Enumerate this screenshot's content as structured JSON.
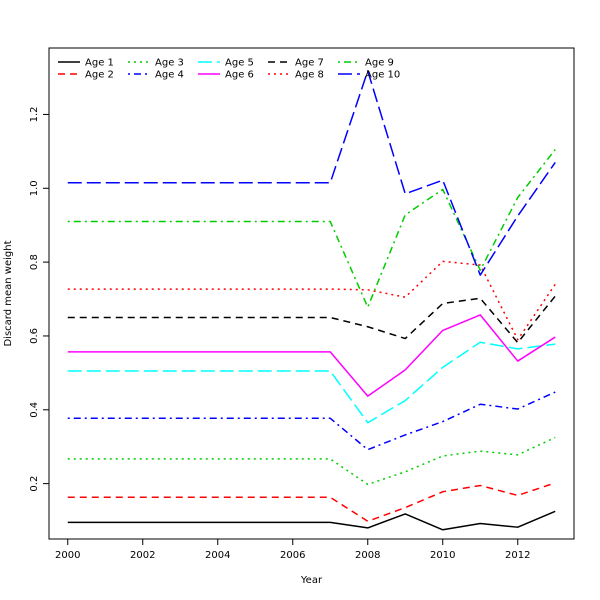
{
  "chart_data": {
    "type": "line",
    "title": "",
    "xlabel": "Year",
    "ylabel": "Discard mean weight",
    "xlim": [
      1999.5,
      2013.5
    ],
    "ylim": [
      0.05,
      1.38
    ],
    "x_ticks": [
      2000,
      2002,
      2004,
      2006,
      2008,
      2010,
      2012
    ],
    "y_ticks": [
      0.2,
      0.4,
      0.6,
      0.8,
      1.0,
      1.2
    ],
    "y_tick_labels": [
      "0.2",
      "0.4",
      "0.6",
      "0.8",
      "1.0",
      "1.2"
    ],
    "grid": false,
    "legend_position": "top-left",
    "x": [
      2000,
      2001,
      2002,
      2003,
      2004,
      2005,
      2006,
      2007,
      2008,
      2009,
      2010,
      2011,
      2012,
      2013
    ],
    "series": [
      {
        "name": "Age 1",
        "color": "#000000",
        "dash": "solid",
        "values": [
          0.095,
          0.095,
          0.095,
          0.095,
          0.095,
          0.095,
          0.095,
          0.095,
          0.08,
          0.118,
          0.075,
          0.092,
          0.082,
          0.125
        ]
      },
      {
        "name": "Age 2",
        "color": "#ff0000",
        "dash": "dashed",
        "values": [
          0.163,
          0.163,
          0.163,
          0.163,
          0.163,
          0.163,
          0.163,
          0.163,
          0.098,
          0.135,
          0.178,
          0.195,
          0.168,
          0.202
        ]
      },
      {
        "name": "Age 3",
        "color": "#00cd00",
        "dash": "dotted",
        "values": [
          0.267,
          0.267,
          0.267,
          0.267,
          0.267,
          0.267,
          0.267,
          0.267,
          0.198,
          0.232,
          0.275,
          0.288,
          0.278,
          0.325
        ]
      },
      {
        "name": "Age 4",
        "color": "#0000ff",
        "dash": "dotdash",
        "values": [
          0.377,
          0.377,
          0.377,
          0.377,
          0.377,
          0.377,
          0.377,
          0.377,
          0.292,
          0.332,
          0.368,
          0.415,
          0.402,
          0.448
        ]
      },
      {
        "name": "Age 5",
        "color": "#00ffff",
        "dash": "longdash",
        "values": [
          0.505,
          0.505,
          0.505,
          0.505,
          0.505,
          0.505,
          0.505,
          0.505,
          0.365,
          0.425,
          0.515,
          0.583,
          0.565,
          0.578
        ]
      },
      {
        "name": "Age 6",
        "color": "#ff00ff",
        "dash": "solid",
        "values": [
          0.557,
          0.557,
          0.557,
          0.557,
          0.557,
          0.557,
          0.557,
          0.557,
          0.437,
          0.508,
          0.615,
          0.657,
          0.532,
          0.597
        ]
      },
      {
        "name": "Age 7",
        "color": "#000000",
        "dash": "dashed",
        "values": [
          0.65,
          0.65,
          0.65,
          0.65,
          0.65,
          0.65,
          0.65,
          0.65,
          0.625,
          0.593,
          0.688,
          0.702,
          0.582,
          0.708
        ]
      },
      {
        "name": "Age 8",
        "color": "#ff0000",
        "dash": "dotted",
        "values": [
          0.727,
          0.727,
          0.727,
          0.727,
          0.727,
          0.727,
          0.727,
          0.727,
          0.725,
          0.705,
          0.802,
          0.792,
          0.59,
          0.74
        ]
      },
      {
        "name": "Age 9",
        "color": "#00cd00",
        "dash": "dotdash",
        "values": [
          0.91,
          0.91,
          0.91,
          0.91,
          0.91,
          0.91,
          0.91,
          0.91,
          0.678,
          0.928,
          0.997,
          0.778,
          0.975,
          1.105
        ]
      },
      {
        "name": "Age 10",
        "color": "#0000ff",
        "dash": "longdash",
        "values": [
          1.015,
          1.015,
          1.015,
          1.015,
          1.015,
          1.015,
          1.015,
          1.015,
          1.318,
          0.985,
          1.022,
          0.765,
          0.925,
          1.07
        ]
      }
    ]
  }
}
